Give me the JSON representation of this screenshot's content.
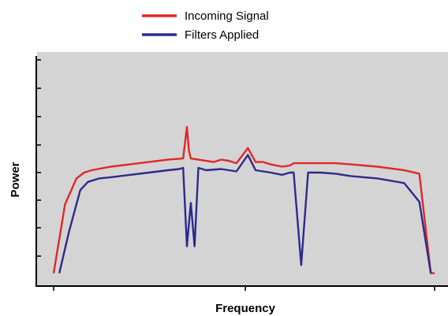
{
  "chart_data": {
    "type": "line",
    "title": "",
    "xlabel": "Frequency",
    "ylabel": "Power",
    "xlim": [
      0,
      100
    ],
    "ylim": [
      0,
      10
    ],
    "legend_position": "top-center",
    "grid": false,
    "background_color": "#d4d4d4",
    "series": [
      {
        "name": "Incoming Signal",
        "color": "#e0272a",
        "x": [
          0,
          3,
          6,
          8,
          10,
          15,
          20,
          25,
          30,
          34,
          35,
          35.5,
          36,
          40,
          40,
          42,
          44,
          46,
          48,
          51,
          53,
          55,
          57,
          60,
          62,
          63,
          65,
          67,
          70,
          72,
          74,
          78,
          85,
          92,
          96,
          99,
          100
        ],
        "y": [
          0.55,
          3.5,
          4.6,
          4.85,
          4.95,
          5.1,
          5.2,
          5.3,
          5.4,
          5.45,
          6.8,
          5.8,
          5.45,
          5.35,
          5.35,
          5.3,
          5.4,
          5.35,
          5.25,
          5.9,
          5.3,
          5.3,
          5.2,
          5.1,
          5.15,
          5.25,
          5.25,
          5.25,
          5.25,
          5.25,
          5.25,
          5.2,
          5.1,
          4.95,
          4.8,
          0.55,
          0.55
        ]
      },
      {
        "name": "Filters Applied",
        "color": "#2d2a8c",
        "x": [
          1.5,
          4,
          7,
          9,
          12,
          15,
          20,
          25,
          30,
          33,
          34,
          35,
          36,
          37,
          38,
          40,
          44,
          46,
          48,
          51,
          53,
          55,
          57,
          60,
          62,
          63,
          65,
          66.8,
          67.8,
          68.8,
          70,
          74,
          78,
          85,
          92,
          96,
          99
        ],
        "y": [
          0.55,
          2.3,
          4.1,
          4.45,
          4.6,
          4.65,
          4.75,
          4.85,
          4.95,
          5.0,
          5.05,
          1.7,
          3.55,
          1.7,
          5.05,
          4.95,
          5.0,
          4.95,
          4.9,
          5.6,
          4.95,
          4.9,
          4.85,
          4.75,
          4.85,
          4.85,
          0.9,
          4.85,
          4.85,
          4.85,
          4.85,
          4.8,
          4.7,
          4.6,
          4.4,
          3.6,
          0.55
        ]
      }
    ]
  }
}
